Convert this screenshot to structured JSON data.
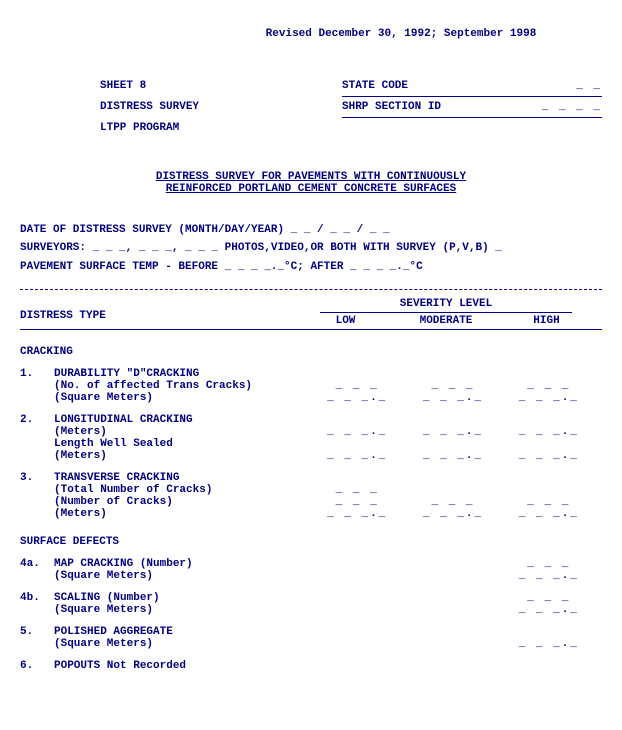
{
  "revised": "Revised December 30, 1992;  September 1998",
  "header_left": {
    "sheet": "SHEET 8",
    "line2": "DISTRESS SURVEY",
    "line3": "LTPP PROGRAM"
  },
  "header_right": {
    "state_code": "STATE CODE",
    "state_code_blank": "_ _",
    "shrp_id": "SHRP SECTION ID",
    "shrp_id_blank": "_ _ _ _"
  },
  "title_line1": "DISTRESS SURVEY FOR PAVEMENTS WITH CONTINUOUSLY",
  "title_line2": "REINFORCED PORTLAND CEMENT CONCRETE SURFACES",
  "fields": {
    "date_line": "DATE OF DISTRESS SURVEY  (MONTH/DAY/YEAR)                 _ _ / _ _ / _ _",
    "surveyors_line": "SURVEYORS: _ _ _, _ _ _, _ _ _  PHOTOS,VIDEO,OR BOTH WITH SURVEY (P,V,B) _",
    "temp_line": "PAVEMENT SURFACE TEMP - BEFORE  _ _ _ _._°C;  AFTER  _ _ _ _._°C"
  },
  "col_headers": {
    "distress_type": "DISTRESS TYPE",
    "severity": "SEVERITY LEVEL",
    "low": "LOW",
    "moderate": "MODERATE",
    "high": "HIGH"
  },
  "sections": [
    {
      "heading": "CRACKING",
      "items": [
        {
          "num": "1.",
          "lines": [
            {
              "label": "DURABILITY \"D\"CRACKING",
              "cells": [
                "",
                "",
                ""
              ]
            },
            {
              "label": "(No. of affected Trans Cracks)",
              "cells": [
                "_ _ _",
                "_ _ _",
                "_ _ _"
              ]
            },
            {
              "label": "(Square Meters)",
              "cells": [
                "_ _ _._",
                "_ _ _._",
                "_ _ _._"
              ]
            }
          ]
        },
        {
          "num": "2.",
          "lines": [
            {
              "label": "LONGITUDINAL CRACKING",
              "cells": [
                "",
                "",
                ""
              ]
            },
            {
              "label": "(Meters)",
              "cells": [
                "_ _ _._",
                "_ _ _._",
                "_ _ _._"
              ]
            },
            {
              "label": "Length Well Sealed",
              "cells": [
                "",
                "",
                ""
              ]
            },
            {
              "label": "(Meters)",
              "cells": [
                "_ _ _._",
                "_ _ _._",
                "_ _ _._"
              ]
            }
          ]
        },
        {
          "num": "3.",
          "lines": [
            {
              "label": "TRANSVERSE CRACKING",
              "cells": [
                "",
                "",
                ""
              ]
            },
            {
              "label": "(Total Number of Cracks)",
              "cells": [
                "_ _ _",
                "",
                ""
              ]
            },
            {
              "label": "(Number of Cracks)",
              "cells": [
                "_ _ _",
                "_ _ _",
                "_ _ _"
              ]
            },
            {
              "label": "(Meters)",
              "cells": [
                "_ _ _._",
                "_ _ _._",
                "_ _ _._"
              ]
            }
          ]
        }
      ]
    },
    {
      "heading": "SURFACE DEFECTS",
      "items": [
        {
          "num": "4a.",
          "lines": [
            {
              "label": "MAP CRACKING (Number)",
              "cells": [
                "",
                "",
                "_ _ _"
              ]
            },
            {
              "label": "(Square Meters)",
              "cells": [
                "",
                "",
                "_ _ _._"
              ]
            }
          ]
        },
        {
          "num": "4b.",
          "lines": [
            {
              "label": "SCALING (Number)",
              "cells": [
                "",
                "",
                "_ _ _"
              ]
            },
            {
              "label": "(Square Meters)",
              "cells": [
                "",
                "",
                "_ _ _._"
              ]
            }
          ]
        },
        {
          "num": " 5.",
          "lines": [
            {
              "label": "POLISHED AGGREGATE",
              "cells": [
                "",
                "",
                ""
              ]
            },
            {
              "label": "(Square Meters)",
              "cells": [
                "",
                "",
                "_ _ _._"
              ]
            }
          ]
        },
        {
          "num": " 6.",
          "lines": [
            {
              "label": "POPOUTS   Not Recorded",
              "cells": [
                "",
                "",
                ""
              ]
            }
          ]
        }
      ]
    }
  ]
}
